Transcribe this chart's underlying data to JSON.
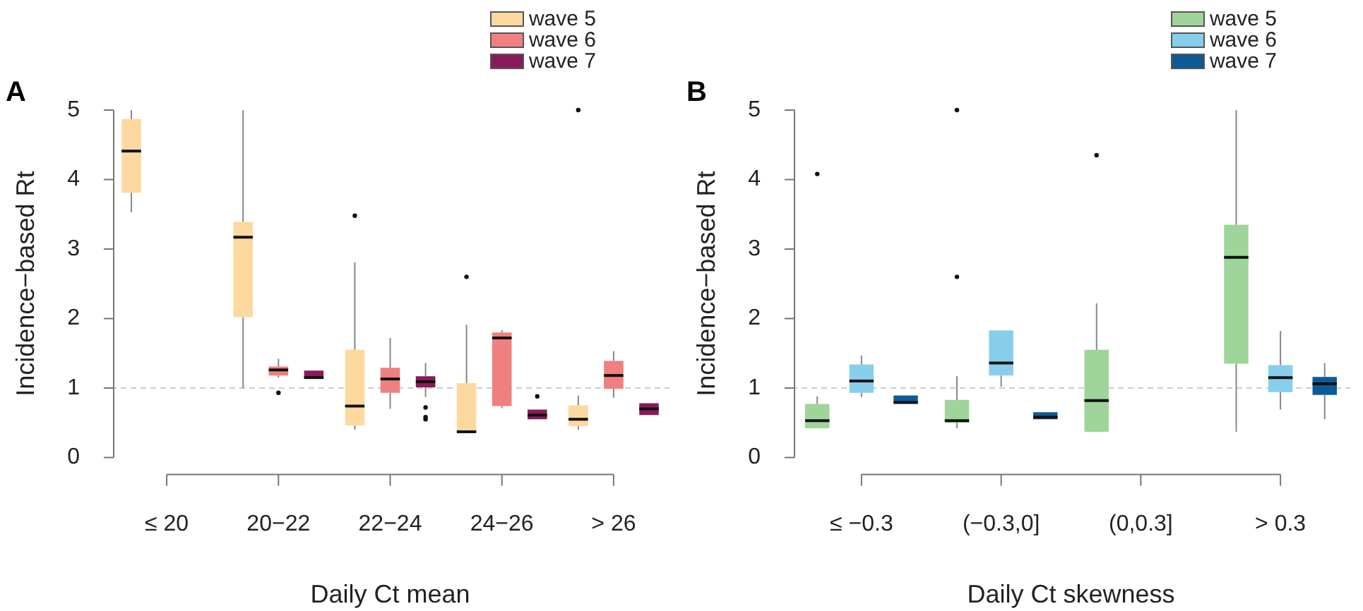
{
  "chart_data": [
    {
      "type": "box",
      "title": "A",
      "xlabel": "Daily Ct mean",
      "ylabel": "Incidence−based Rt",
      "categories": [
        "≤ 20",
        "20−22",
        "22−24",
        "24−26",
        "> 26"
      ],
      "ylim": [
        0,
        5
      ],
      "yticks": [
        0,
        1,
        2,
        3,
        4,
        5
      ],
      "legend": "top right",
      "ref_lines": [
        {
          "axis": "y",
          "value": 1,
          "color": "#cccccc",
          "line_style": "dashed"
        }
      ],
      "series": [
        {
          "name": "wave 5",
          "color": "#fdd9a0",
          "boxes": [
            {
              "low": 3.53,
              "q1": 3.81,
              "median": 4.41,
              "q3": 4.87,
              "high": 5.0
            },
            {
              "low": 1.0,
              "q1": 2.02,
              "median": 3.17,
              "q3": 3.39,
              "high": 5.0
            },
            {
              "low": 0.4,
              "q1": 0.46,
              "median": 0.74,
              "q3": 1.55,
              "high": 2.81,
              "outliers": [
                3.48
              ]
            },
            {
              "low": 0.37,
              "q1": 0.37,
              "median": 0.37,
              "q3": 1.07,
              "high": 1.91,
              "outliers": [
                2.6
              ]
            },
            {
              "low": 0.4,
              "q1": 0.45,
              "median": 0.55,
              "q3": 0.75,
              "high": 0.89,
              "outliers": [
                5.0
              ]
            }
          ]
        },
        {
          "name": "wave 6",
          "color": "#f08080",
          "boxes": [
            null,
            {
              "low": 1.15,
              "q1": 1.18,
              "median": 1.26,
              "q3": 1.31,
              "high": 1.42,
              "outliers": [
                0.93
              ]
            },
            {
              "low": 0.7,
              "q1": 0.93,
              "median": 1.13,
              "q3": 1.29,
              "high": 1.72
            },
            {
              "low": 0.71,
              "q1": 0.74,
              "median": 1.72,
              "q3": 1.8,
              "high": 1.83
            },
            {
              "low": 0.86,
              "q1": 0.99,
              "median": 1.18,
              "q3": 1.39,
              "high": 1.53
            }
          ]
        },
        {
          "name": "wave 7",
          "color": "#8b1a5a",
          "boxes": [
            null,
            {
              "low": 1.15,
              "q1": 1.15,
              "median": 1.15,
              "q3": 1.15,
              "high": 1.15
            },
            {
              "low": 0.87,
              "q1": 1.01,
              "median": 1.09,
              "q3": 1.17,
              "high": 1.36,
              "outliers": [
                0.72,
                0.58,
                0.55
              ]
            },
            {
              "low": 0.55,
              "q1": 0.55,
              "median": 0.61,
              "q3": 0.69,
              "high": 0.69,
              "outliers": [
                0.88
              ]
            },
            {
              "low": 0.61,
              "q1": 0.61,
              "median": 0.7,
              "q3": 0.78,
              "high": 0.78
            }
          ]
        }
      ]
    },
    {
      "type": "box",
      "title": "B",
      "xlabel": "Daily Ct skewness",
      "ylabel": "Incidence−based Rt",
      "categories": [
        "≤ −0.3",
        "(−0.3,0]",
        "(0,0.3]",
        "> 0.3"
      ],
      "ylim": [
        0,
        5
      ],
      "yticks": [
        0,
        1,
        2,
        3,
        4,
        5
      ],
      "legend": "top right",
      "ref_lines": [
        {
          "axis": "y",
          "value": 1,
          "color": "#cccccc",
          "line_style": "dashed"
        }
      ],
      "series": [
        {
          "name": "wave 5",
          "color": "#9fd49a",
          "boxes": [
            {
              "low": 0.42,
              "q1": 0.42,
              "median": 0.53,
              "q3": 0.77,
              "high": 0.88,
              "outliers": [
                4.08
              ]
            },
            {
              "low": 0.42,
              "q1": 0.5,
              "median": 0.53,
              "q3": 0.83,
              "high": 1.17,
              "outliers": [
                5.0,
                2.6
              ]
            },
            {
              "low": 0.37,
              "q1": 0.37,
              "median": 0.82,
              "q3": 1.55,
              "high": 2.22,
              "outliers": [
                4.35
              ]
            },
            {
              "low": 0.37,
              "q1": 1.35,
              "median": 2.88,
              "q3": 3.35,
              "high": 5.0
            }
          ]
        },
        {
          "name": "wave 6",
          "color": "#87ceeb",
          "boxes": [
            {
              "low": 0.87,
              "q1": 0.93,
              "median": 1.1,
              "q3": 1.34,
              "high": 1.47
            },
            {
              "low": 1.02,
              "q1": 1.18,
              "median": 1.36,
              "q3": 1.83,
              "high": 1.83
            },
            null,
            {
              "low": 0.69,
              "q1": 0.94,
              "median": 1.15,
              "q3": 1.33,
              "high": 1.82
            }
          ]
        },
        {
          "name": "wave 7",
          "color": "#0d5a96",
          "boxes": [
            {
              "low": 0.79,
              "q1": 0.79,
              "median": 0.79,
              "q3": 0.79,
              "high": 0.79
            },
            {
              "low": 0.55,
              "q1": 0.55,
              "median": 0.58,
              "q3": 0.61,
              "high": 0.61
            },
            null,
            {
              "low": 0.55,
              "q1": 0.9,
              "median": 1.06,
              "q3": 1.16,
              "high": 1.36
            }
          ]
        }
      ]
    }
  ]
}
